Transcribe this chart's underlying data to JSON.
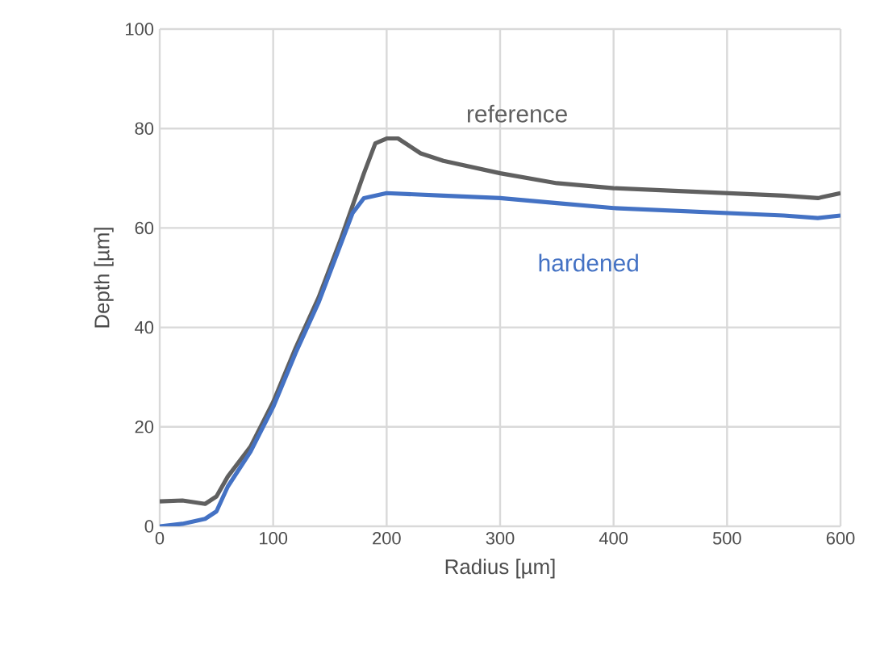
{
  "chart_data": {
    "type": "line",
    "xlabel": "Radius [µm]",
    "ylabel": "Depth [µm]",
    "xlim": [
      0,
      600
    ],
    "ylim": [
      0,
      100
    ],
    "xticks": [
      0,
      100,
      200,
      300,
      400,
      500,
      600
    ],
    "yticks": [
      0,
      20,
      40,
      60,
      80,
      100
    ],
    "grid": true,
    "legend": false,
    "series": [
      {
        "name": "reference",
        "color": "#606060",
        "x": [
          0,
          20,
          40,
          50,
          60,
          80,
          100,
          120,
          140,
          160,
          180,
          190,
          200,
          210,
          230,
          250,
          300,
          350,
          400,
          450,
          500,
          550,
          580,
          600
        ],
        "values": [
          5,
          5.2,
          4.5,
          6,
          10,
          16,
          25,
          36,
          46,
          58,
          71,
          77,
          78,
          78,
          75,
          73.5,
          71,
          69,
          68,
          67.5,
          67,
          66.5,
          66,
          67
        ]
      },
      {
        "name": "hardened",
        "color": "#4472c4",
        "x": [
          0,
          20,
          40,
          50,
          60,
          80,
          100,
          120,
          140,
          160,
          170,
          180,
          200,
          250,
          300,
          350,
          400,
          450,
          500,
          550,
          580,
          600
        ],
        "values": [
          0,
          0.5,
          1.5,
          3,
          8,
          15,
          24,
          35,
          45,
          57,
          63,
          66,
          67,
          66.5,
          66,
          65,
          64,
          63.5,
          63,
          62.5,
          62,
          62.5
        ]
      }
    ]
  }
}
